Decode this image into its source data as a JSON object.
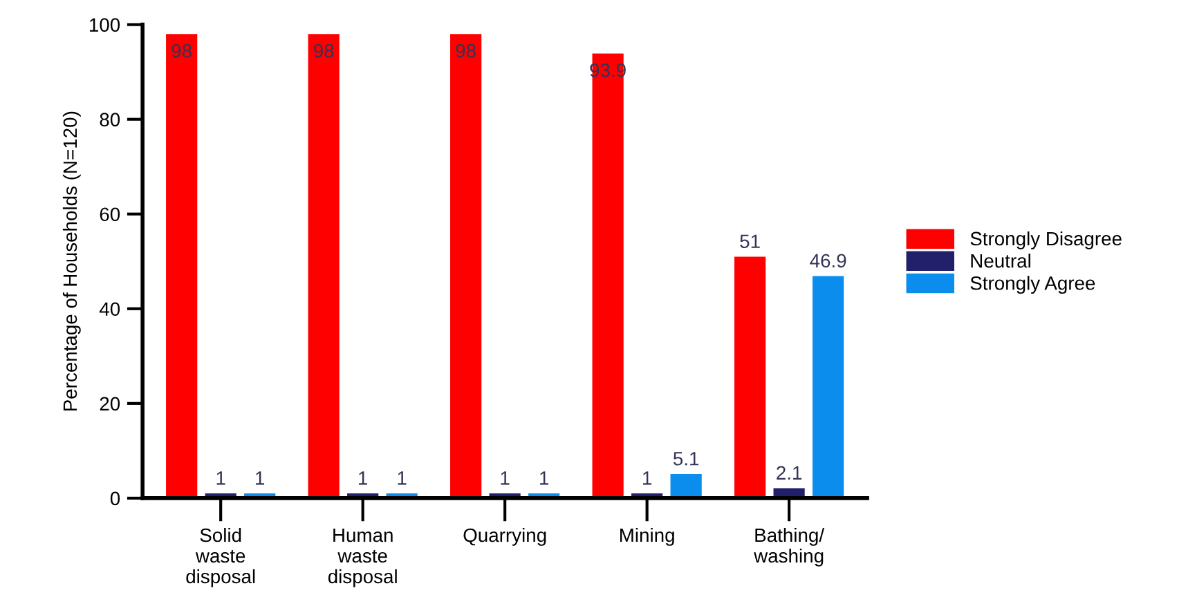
{
  "chart_data": {
    "type": "bar",
    "ylabel": "Percentage of Households (N=120)",
    "categories": [
      "Solid\nwaste\ndisposal",
      "Human\nwaste\ndisposal",
      "Quarrying",
      "Mining",
      "Bathing/\nwashing"
    ],
    "series": [
      {
        "name": "Strongly Disagree",
        "color": "#ff0000",
        "values": [
          98,
          98,
          98,
          93.9,
          51
        ]
      },
      {
        "name": "Neutral",
        "color": "#22206a",
        "values": [
          1,
          1,
          1,
          1,
          2.1
        ]
      },
      {
        "name": "Strongly Agree",
        "color": "#0a8ded",
        "values": [
          1,
          1,
          1,
          5.1,
          46.9
        ]
      }
    ],
    "ylim": [
      0,
      100
    ],
    "yticks": [
      0,
      20,
      40,
      60,
      80,
      100
    ],
    "grid": false,
    "legend": "right",
    "data_labels": true
  }
}
